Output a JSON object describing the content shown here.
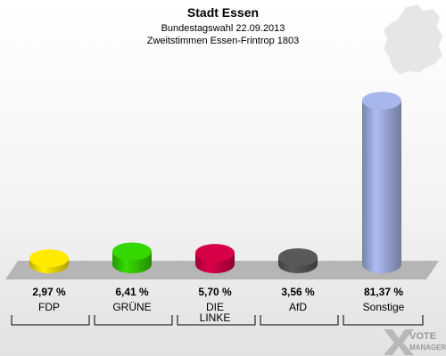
{
  "chart_data": {
    "type": "bar",
    "title": "Stadt Essen",
    "subtitle_1": "Bundestagswahl 22.09.2013",
    "subtitle_2": "Zweitstimmen Essen-Frintrop 1803",
    "categories": [
      "FDP",
      "GRÜNE",
      "DIE LINKE",
      "AfD",
      "Sonstige"
    ],
    "value_labels": [
      "2,97 %",
      "6,41 %",
      "5,70 %",
      "3,56 %",
      "81,37 %"
    ],
    "values": [
      2.97,
      6.41,
      5.7,
      3.56,
      81.37
    ],
    "unit": "%",
    "colors": [
      "#ffe000",
      "#33cc00",
      "#cc0044",
      "#555555",
      "#a0aee0"
    ],
    "ylim": [
      0,
      100
    ],
    "grid": false,
    "legend": "none"
  },
  "branding": {
    "logo_text_1": "VOTE",
    "logo_text_2": "MANAGER"
  }
}
